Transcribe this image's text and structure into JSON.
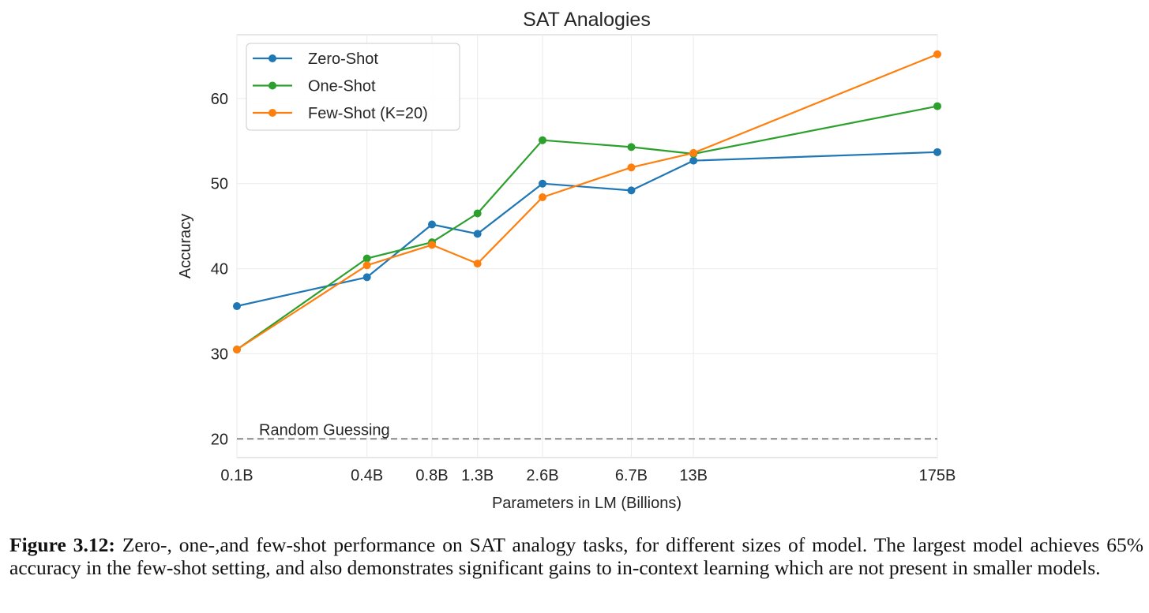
{
  "chart_data": {
    "type": "line",
    "title": "SAT Analogies",
    "xlabel": "Parameters in LM (Billions)",
    "ylabel": "Accuracy",
    "x_scale": "log",
    "x": [
      0.1,
      0.4,
      0.8,
      1.3,
      2.6,
      6.7,
      13,
      175
    ],
    "xtick_labels": [
      "0.1B",
      "0.4B",
      "0.8B",
      "1.3B",
      "2.6B",
      "6.7B",
      "13B",
      "175B"
    ],
    "yticks": [
      20,
      30,
      40,
      50,
      60
    ],
    "ylim": [
      17.8,
      67.5
    ],
    "grid": true,
    "legend_position": "upper-left",
    "series": [
      {
        "name": "Zero-Shot",
        "color": "#1f77b4",
        "values": [
          35.6,
          39.0,
          45.2,
          44.1,
          50.0,
          49.2,
          52.7,
          53.7
        ]
      },
      {
        "name": "One-Shot",
        "color": "#2ca02c",
        "values": [
          30.5,
          41.2,
          43.1,
          46.5,
          55.1,
          54.3,
          53.5,
          59.1
        ]
      },
      {
        "name": "Few-Shot (K=20)",
        "color": "#ff7f0e",
        "values": [
          30.5,
          40.4,
          42.8,
          40.6,
          48.4,
          51.9,
          53.6,
          65.2
        ]
      }
    ],
    "reference_line": {
      "label": "Random Guessing",
      "value": 20,
      "color": "#888888",
      "style": "dashed"
    }
  },
  "caption": {
    "label": "Figure 3.12:",
    "text": "Zero-, one-,and few-shot performance on SAT analogy tasks, for different sizes of model. The largest model achieves 65% accuracy in the few-shot setting, and also demonstrates significant gains to in-context learning which are not present in smaller models."
  }
}
